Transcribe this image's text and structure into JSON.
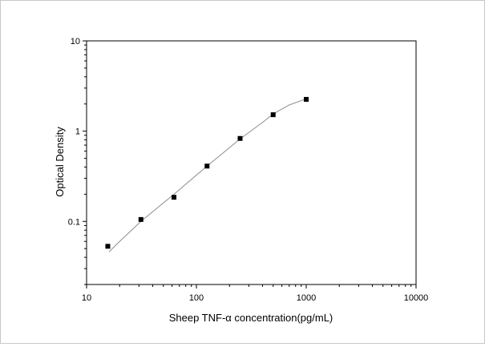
{
  "chart_data": {
    "type": "scatter",
    "xlabel": "Sheep TNF-α  concentration(pg/mL)",
    "ylabel": "Optical Density",
    "x_scale": "log",
    "y_scale": "log",
    "xlim": [
      10,
      10000
    ],
    "ylim": [
      0.02,
      10
    ],
    "x_ticks": [
      10,
      100,
      1000,
      10000
    ],
    "x_tick_labels": [
      "10",
      "100",
      "1000",
      "10000"
    ],
    "y_ticks": [
      0.1,
      1,
      10
    ],
    "y_tick_labels": [
      "0.1",
      "1",
      "10"
    ],
    "grid": false,
    "legend": "none",
    "marker": "square",
    "series": [
      {
        "points": [
          {
            "x": 15.6,
            "y": 0.053
          },
          {
            "x": 31.25,
            "y": 0.105
          },
          {
            "x": 62.5,
            "y": 0.185
          },
          {
            "x": 125,
            "y": 0.41
          },
          {
            "x": 250,
            "y": 0.83
          },
          {
            "x": 500,
            "y": 1.52
          },
          {
            "x": 1000,
            "y": 2.25
          }
        ],
        "fit_curve": [
          {
            "x": 16,
            "y": 0.046
          },
          {
            "x": 20,
            "y": 0.06
          },
          {
            "x": 31.25,
            "y": 0.1
          },
          {
            "x": 62.5,
            "y": 0.2
          },
          {
            "x": 125,
            "y": 0.41
          },
          {
            "x": 250,
            "y": 0.82
          },
          {
            "x": 400,
            "y": 1.25
          },
          {
            "x": 500,
            "y": 1.55
          },
          {
            "x": 700,
            "y": 1.95
          },
          {
            "x": 1000,
            "y": 2.28
          }
        ]
      }
    ]
  }
}
